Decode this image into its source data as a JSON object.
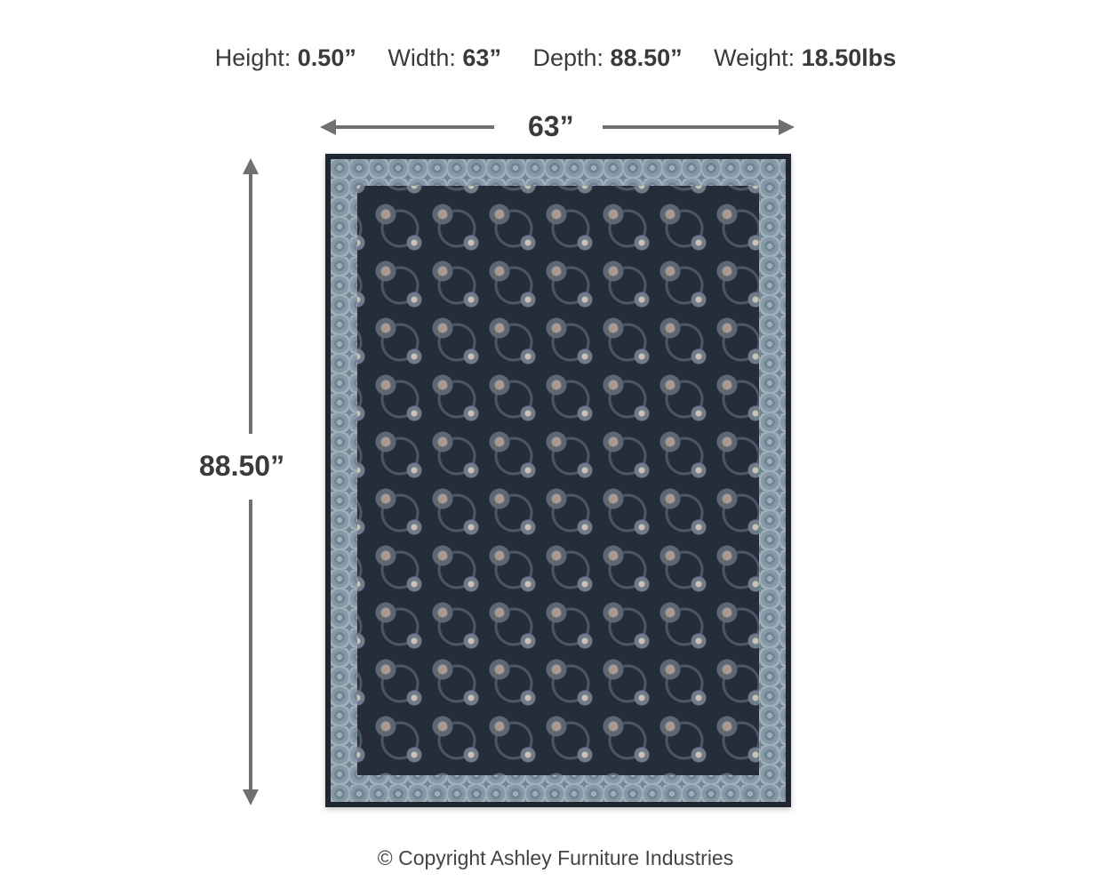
{
  "specs": [
    {
      "label": "Height:",
      "value": "0.50”"
    },
    {
      "label": "Width:",
      "value": "63”"
    },
    {
      "label": "Depth:",
      "value": "88.50”"
    },
    {
      "label": "Weight:",
      "value": "18.50lbs"
    }
  ],
  "dimensions": {
    "width_label": "63”",
    "height_label": "88.50”"
  },
  "colors": {
    "arrow": "#707070",
    "rug_field": "#252d3a",
    "rug_border": "#8698a5"
  },
  "copyright": "© Copyright Ashley Furniture Industries"
}
